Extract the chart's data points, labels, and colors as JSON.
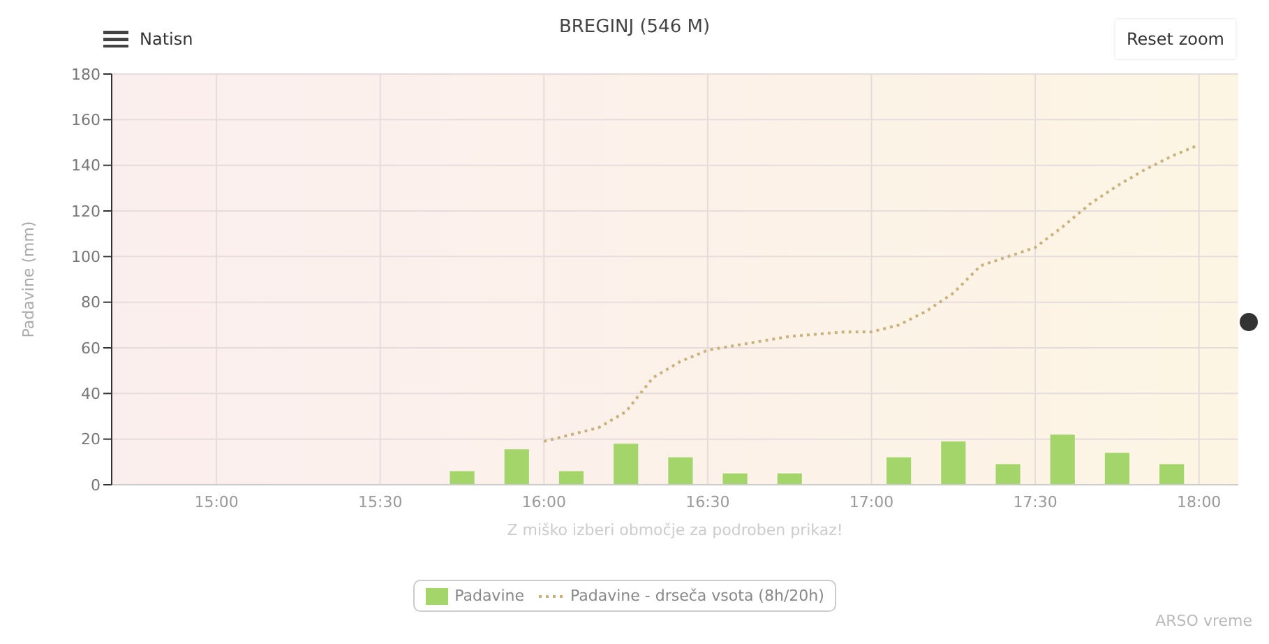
{
  "chart_data": {
    "type": "bar",
    "title": "BREGINJ (546 M)",
    "ylabel": "Padavine (mm)",
    "xlim": [
      14.68,
      18.12
    ],
    "xticks": [
      {
        "value": 15,
        "label": "15:00"
      },
      {
        "value": 15.5,
        "label": "15:30"
      },
      {
        "value": 16,
        "label": "16:00"
      },
      {
        "value": 16.5,
        "label": "16:30"
      },
      {
        "value": 17,
        "label": "17:00"
      },
      {
        "value": 17.5,
        "label": "17:30"
      },
      {
        "value": 18,
        "label": "18:00"
      }
    ],
    "ylim": [
      0,
      180
    ],
    "yticks": [
      0,
      20,
      40,
      60,
      80,
      100,
      120,
      140,
      160,
      180
    ],
    "series": [
      {
        "name": "Padavine",
        "color": "#a3d56b",
        "x": [
          15.75,
          15.9167,
          16.0833,
          16.25,
          16.4167,
          16.5833,
          16.75,
          17.0833,
          17.25,
          17.4167,
          17.5833,
          17.75,
          17.9167
        ],
        "values": [
          6,
          15.5,
          6,
          18,
          12,
          5,
          5,
          12,
          19,
          9,
          22,
          14,
          9
        ]
      },
      {
        "name": "Padavine - drseča vsota (8h/20h)",
        "type": "line",
        "color": "#c9b27c",
        "line_style": "dotted",
        "marker": "none",
        "x": [
          16,
          16.0833,
          16.1667,
          16.25,
          16.3333,
          16.4167,
          16.5,
          16.5833,
          16.6667,
          16.75,
          16.8333,
          16.9167,
          17,
          17.0833,
          17.1667,
          17.25,
          17.3333,
          17.4167,
          17.5,
          17.5833,
          17.6667,
          17.75,
          17.8333,
          17.9167,
          18
        ],
        "values": [
          19,
          22,
          25,
          32,
          47,
          54,
          59,
          61,
          63,
          65,
          66,
          67,
          67,
          70,
          76,
          84,
          96,
          100,
          104,
          113,
          123,
          131,
          138,
          144,
          149
        ]
      }
    ],
    "grid": true,
    "legend": "bottom",
    "annotations": [
      "Natisn",
      "Reset zoom",
      "Z miško izberi območje za podroben prikaz!",
      "ARSO vreme"
    ]
  }
}
